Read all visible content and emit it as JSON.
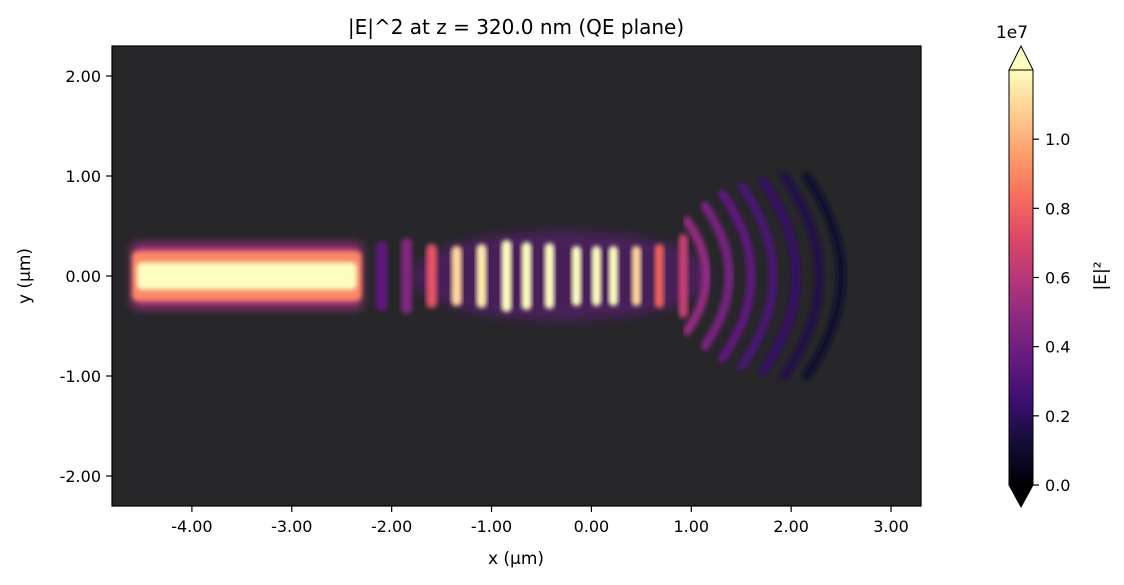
{
  "chart_data": {
    "type": "heatmap",
    "title": "|E|^2 at z = 320.0 nm (QE plane)",
    "xlabel": "x (µm)",
    "ylabel": "y (µm)",
    "xlim": [
      -4.8,
      3.3
    ],
    "ylim": [
      -2.3,
      2.3
    ],
    "xticks": [
      -4.0,
      -3.0,
      -2.0,
      -1.0,
      0.0,
      1.0,
      2.0,
      3.0
    ],
    "xtick_labels": [
      "-4.00",
      "-3.00",
      "-2.00",
      "-1.00",
      "0.00",
      "1.00",
      "2.00",
      "3.00"
    ],
    "yticks": [
      -2.0,
      -1.0,
      0.0,
      1.0,
      2.0
    ],
    "ytick_labels": [
      "-2.00",
      "-1.00",
      "0.00",
      "1.00",
      "2.00"
    ],
    "background_color": "#27272a",
    "colorbar": {
      "label": "|E|²",
      "multiplier": "1e7",
      "colormap": "magma",
      "range": [
        0,
        1.2
      ],
      "extend": "both",
      "ticks": [
        0.0,
        0.2,
        0.4,
        0.6,
        0.8,
        1.0
      ],
      "tick_labels": [
        "0.0",
        "0.2",
        "0.4",
        "0.6",
        "0.8",
        "1.0"
      ]
    },
    "features": {
      "waveguide": {
        "x_start": -4.6,
        "x_end": -2.3,
        "half_width": 0.25,
        "intensity": 1.2
      },
      "fringes": [
        {
          "x": -2.1,
          "half_height": 0.35,
          "intensity": 0.35
        },
        {
          "x": -1.85,
          "half_height": 0.38,
          "intensity": 0.45
        },
        {
          "x": -1.6,
          "half_height": 0.32,
          "intensity": 0.75
        },
        {
          "x": -1.35,
          "half_height": 0.3,
          "intensity": 1.1
        },
        {
          "x": -1.1,
          "half_height": 0.32,
          "intensity": 1.15
        },
        {
          "x": -0.85,
          "half_height": 0.36,
          "intensity": 1.2
        },
        {
          "x": -0.65,
          "half_height": 0.34,
          "intensity": 1.2
        },
        {
          "x": -0.42,
          "half_height": 0.33,
          "intensity": 1.2
        },
        {
          "x": -0.15,
          "half_height": 0.3,
          "intensity": 1.2
        },
        {
          "x": 0.05,
          "half_height": 0.3,
          "intensity": 1.2
        },
        {
          "x": 0.22,
          "half_height": 0.3,
          "intensity": 1.2
        },
        {
          "x": 0.45,
          "half_height": 0.3,
          "intensity": 1.1
        },
        {
          "x": 0.68,
          "half_height": 0.32,
          "intensity": 0.8
        },
        {
          "x": 0.92,
          "half_height": 0.42,
          "intensity": 0.65
        },
        {
          "x": 1.15,
          "half_height": 0.55,
          "intensity": 0.5
        },
        {
          "x": 1.38,
          "half_height": 0.7,
          "intensity": 0.42
        },
        {
          "x": 1.6,
          "half_height": 0.82,
          "intensity": 0.35
        },
        {
          "x": 1.82,
          "half_height": 0.9,
          "intensity": 0.28
        },
        {
          "x": 2.05,
          "half_height": 0.95,
          "intensity": 0.22
        },
        {
          "x": 2.28,
          "half_height": 1.0,
          "intensity": 0.16
        },
        {
          "x": 2.5,
          "half_height": 1.0,
          "intensity": 0.1
        }
      ]
    }
  }
}
